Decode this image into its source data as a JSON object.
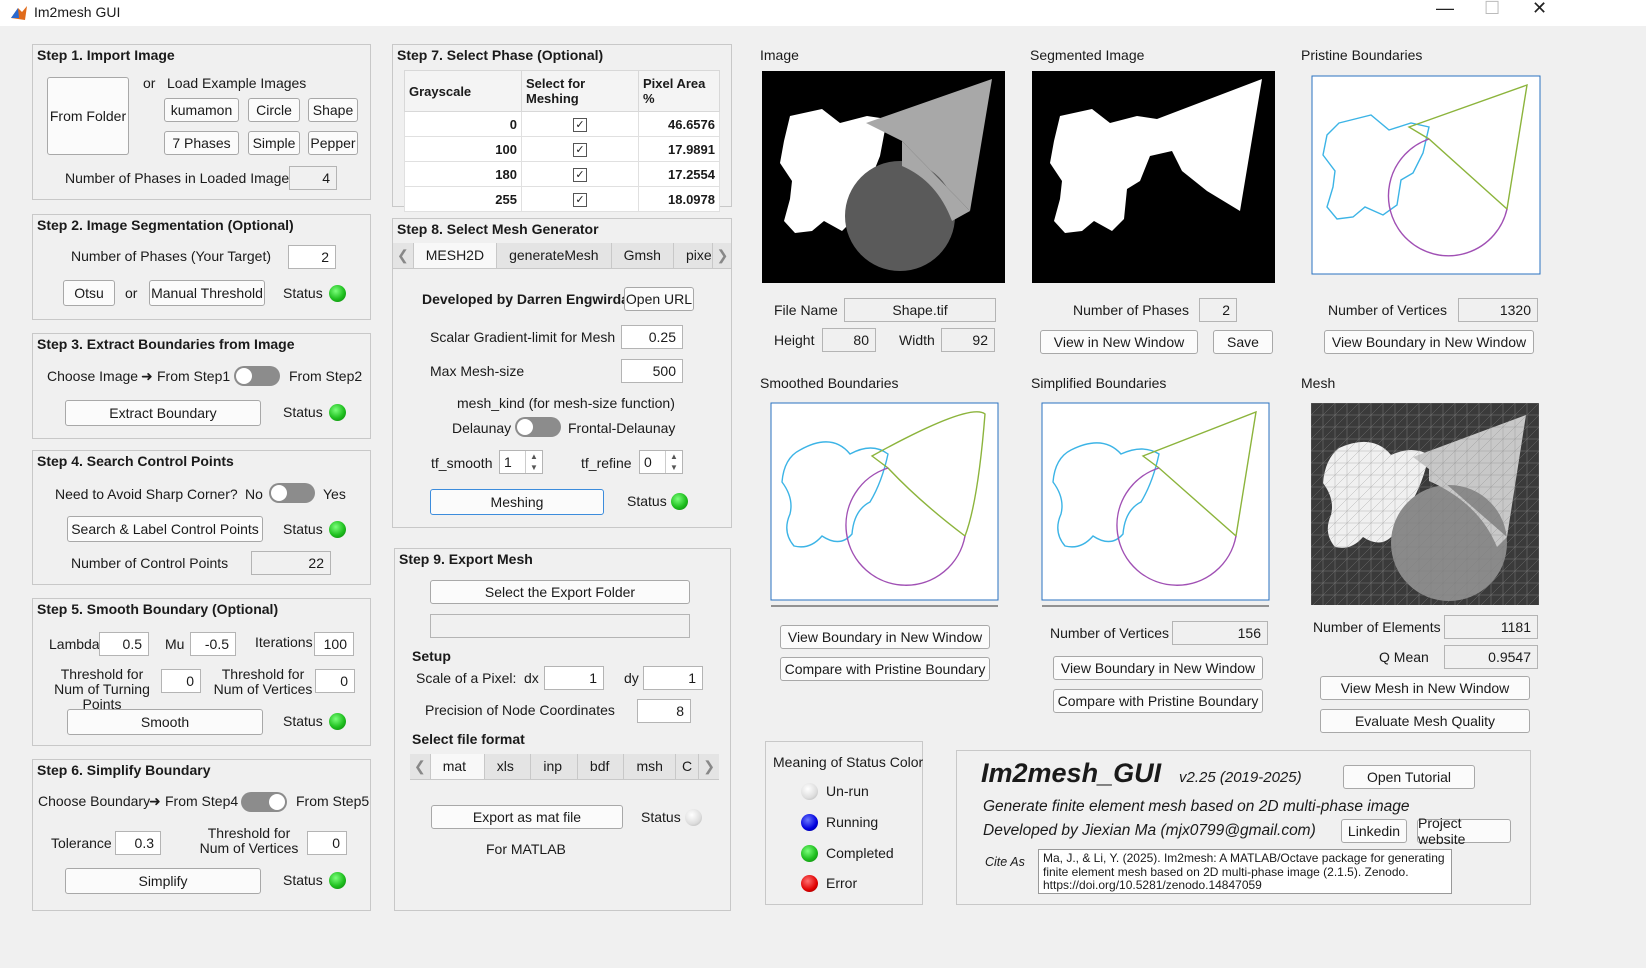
{
  "window": {
    "title": "Im2mesh GUI",
    "minimize": "—",
    "maximize": "☐",
    "close": "✕"
  },
  "step1": {
    "title": "Step 1. Import Image",
    "from_folder": "From Folder",
    "or": "or",
    "load_examples": "Load Example Images",
    "examples": [
      "kumamon",
      "Circle",
      "Shape",
      "7 Phases",
      "Simple",
      "Pepper"
    ],
    "num_phases_label": "Number of Phases in Loaded Image",
    "num_phases": "4"
  },
  "step2": {
    "title": "Step 2. Image Segmentation (Optional)",
    "target_label": "Number of Phases (Your Target)",
    "target": "2",
    "otsu": "Otsu",
    "or": "or",
    "manual": "Manual Threshold",
    "status": "Status"
  },
  "step3": {
    "title": "Step 3. Extract Boundaries from Image",
    "choose": "Choose Image",
    "arrow": "➜",
    "from1": "From Step1",
    "from2": "From Step2",
    "extract": "Extract Boundary",
    "status": "Status"
  },
  "step4": {
    "title": "Step 4. Search Control Points",
    "avoid": "Need to Avoid Sharp Corner?",
    "no": "No",
    "yes": "Yes",
    "search": "Search & Label Control Points",
    "status": "Status",
    "num_label": "Number of Control Points",
    "num": "22"
  },
  "step5": {
    "title": "Step 5. Smooth Boundary (Optional)",
    "lambda_label": "Lambda",
    "lambda": "0.5",
    "mu_label": "Mu",
    "mu": "-0.5",
    "iter_label": "Iterations",
    "iter": "100",
    "turn_label": "Threshold for Num of Turning Points",
    "turn": "0",
    "vert_label": "Threshold for Num of Vertices",
    "vert": "0",
    "smooth": "Smooth",
    "status": "Status"
  },
  "step6": {
    "title": "Step 6. Simplify Boundary",
    "choose": "Choose Boundary",
    "arrow": "➜",
    "from4": "From Step4",
    "from5": "From Step5",
    "tol_label": "Tolerance",
    "tol": "0.3",
    "vert_label": "Threshold for Num of Vertices",
    "vert": "0",
    "simplify": "Simplify",
    "status": "Status"
  },
  "step7": {
    "title": "Step 7. Select Phase (Optional)",
    "headers": [
      "Grayscale",
      "Select for Meshing",
      "Pixel Area %"
    ],
    "rows": [
      {
        "g": "0",
        "a": "46.6576"
      },
      {
        "g": "100",
        "a": "17.9891"
      },
      {
        "g": "180",
        "a": "17.2554"
      },
      {
        "g": "255",
        "a": "18.0978"
      }
    ],
    "check": "✓"
  },
  "step8": {
    "title": "Step 8. Select Mesh Generator",
    "tabs": [
      "MESH2D",
      "generateMesh",
      "Gmsh",
      "pixe"
    ],
    "dev": "Developed by Darren Engwirda",
    "open_url": "Open URL",
    "grad_label": "Scalar Gradient-limit for Mesh",
    "grad": "0.25",
    "max_label": "Max Mesh-size",
    "max": "500",
    "kind_label": "mesh_kind (for mesh-size function)",
    "delaunay": "Delaunay",
    "frontal": "Frontal-Delaunay",
    "tf_smooth_label": "tf_smooth",
    "tf_smooth": "1",
    "tf_refine_label": "tf_refine",
    "tf_refine": "0",
    "meshing": "Meshing",
    "status": "Status"
  },
  "step9": {
    "title": "Step 9. Export Mesh",
    "select_folder": "Select the Export Folder",
    "folder_path": "",
    "setup": "Setup",
    "scale_label": "Scale of a Pixel:",
    "dx_label": "dx",
    "dx": "1",
    "dy_label": "dy",
    "dy": "1",
    "prec_label": "Precision of Node Coordinates",
    "prec": "8",
    "format_label": "Select file format",
    "formats": [
      "mat",
      "xls",
      "inp",
      "bdf",
      "msh",
      "C"
    ],
    "export": "Export as mat file",
    "status": "Status",
    "note": "For MATLAB"
  },
  "image": {
    "title": "Image",
    "file_label": "File Name",
    "file": "Shape.tif",
    "h_label": "Height",
    "h": "80",
    "w_label": "Width",
    "w": "92"
  },
  "segmented": {
    "title": "Segmented Image",
    "n_label": "Number of Phases",
    "n": "2",
    "view": "View in New Window",
    "save": "Save"
  },
  "pristine": {
    "title": "Pristine Boundaries",
    "v_label": "Number of Vertices",
    "v": "1320",
    "view": "View Boundary in New Window"
  },
  "smoothed": {
    "title": "Smoothed Boundaries",
    "view": "View Boundary in New Window",
    "compare": "Compare with Pristine Boundary"
  },
  "simplified": {
    "title": "Simplified Boundaries",
    "v_label": "Number of Vertices",
    "v": "156",
    "view": "View Boundary in New Window",
    "compare": "Compare with Pristine Boundary"
  },
  "mesh": {
    "title": "Mesh",
    "e_label": "Number of Elements",
    "e": "1181",
    "q_label": "Q Mean",
    "q": "0.9547",
    "view": "View Mesh in New Window",
    "eval": "Evaluate Mesh Quality"
  },
  "legend": {
    "title": "Meaning of Status Color",
    "items": [
      "Un-run",
      "Running",
      "Completed",
      "Error"
    ]
  },
  "about": {
    "name": "Im2mesh_GUI",
    "version": "v2.25 (2019-2025)",
    "tutorial": "Open Tutorial",
    "line1": "Generate finite element mesh based on 2D multi-phase image",
    "line2": "Developed by Jiexian Ma (mjx0799@gmail.com)",
    "linkedin": "Linkedin",
    "website": "Project website",
    "cite_label": "Cite As",
    "cite": "Ma, J., & Li, Y. (2025). Im2mesh: A MATLAB/Octave package for generating finite element mesh based on 2D multi-phase image (2.1.5). Zenodo. https://doi.org/10.5281/zenodo.14847059"
  },
  "colors": {
    "cyan": "#3cb4e6",
    "green": "#8cb43c",
    "purple": "#a050b4",
    "accent": "#2a72c0"
  }
}
